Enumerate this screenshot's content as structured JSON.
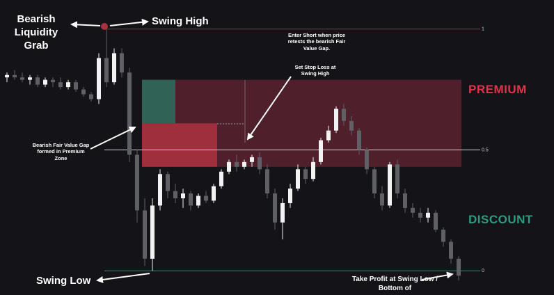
{
  "chart_data": {
    "type": "candlestick",
    "ylim": [
      -0.1,
      1.12
    ],
    "yticks": [
      0,
      0.5,
      1
    ],
    "up_color": "#f2f2f2",
    "down_color": "#5f6066",
    "candles": [
      [
        0.8,
        0.82,
        0.78,
        0.81
      ],
      [
        0.81,
        0.83,
        0.79,
        0.8
      ],
      [
        0.8,
        0.82,
        0.78,
        0.79
      ],
      [
        0.79,
        0.81,
        0.77,
        0.8
      ],
      [
        0.8,
        0.81,
        0.76,
        0.77
      ],
      [
        0.77,
        0.8,
        0.76,
        0.79
      ],
      [
        0.79,
        0.8,
        0.76,
        0.78
      ],
      [
        0.78,
        0.8,
        0.75,
        0.76
      ],
      [
        0.76,
        0.79,
        0.75,
        0.78
      ],
      [
        0.78,
        0.79,
        0.74,
        0.75
      ],
      [
        0.75,
        0.76,
        0.72,
        0.73
      ],
      [
        0.73,
        0.74,
        0.7,
        0.71
      ],
      [
        0.71,
        0.9,
        0.69,
        0.88
      ],
      [
        0.88,
        1.0,
        0.76,
        0.78
      ],
      [
        0.78,
        0.92,
        0.77,
        0.9
      ],
      [
        0.9,
        0.92,
        0.8,
        0.82
      ],
      [
        0.82,
        0.84,
        0.45,
        0.48
      ],
      [
        0.48,
        0.5,
        0.2,
        0.25
      ],
      [
        0.25,
        0.3,
        0.02,
        0.05
      ],
      [
        0.05,
        0.3,
        0.0,
        0.27
      ],
      [
        0.27,
        0.42,
        0.25,
        0.4
      ],
      [
        0.4,
        0.41,
        0.3,
        0.33
      ],
      [
        0.33,
        0.36,
        0.28,
        0.3
      ],
      [
        0.3,
        0.34,
        0.26,
        0.32
      ],
      [
        0.32,
        0.33,
        0.25,
        0.27
      ],
      [
        0.27,
        0.32,
        0.26,
        0.31
      ],
      [
        0.31,
        0.33,
        0.28,
        0.29
      ],
      [
        0.29,
        0.36,
        0.28,
        0.35
      ],
      [
        0.35,
        0.42,
        0.34,
        0.41
      ],
      [
        0.41,
        0.46,
        0.4,
        0.45
      ],
      [
        0.45,
        0.48,
        0.41,
        0.43
      ],
      [
        0.43,
        0.46,
        0.42,
        0.45
      ],
      [
        0.45,
        0.48,
        0.43,
        0.47
      ],
      [
        0.47,
        0.49,
        0.4,
        0.42
      ],
      [
        0.42,
        0.44,
        0.3,
        0.32
      ],
      [
        0.32,
        0.34,
        0.17,
        0.2
      ],
      [
        0.2,
        0.3,
        0.13,
        0.28
      ],
      [
        0.28,
        0.36,
        0.26,
        0.34
      ],
      [
        0.34,
        0.44,
        0.33,
        0.42
      ],
      [
        0.42,
        0.43,
        0.36,
        0.38
      ],
      [
        0.38,
        0.47,
        0.37,
        0.45
      ],
      [
        0.45,
        0.55,
        0.44,
        0.54
      ],
      [
        0.54,
        0.6,
        0.53,
        0.58
      ],
      [
        0.58,
        0.68,
        0.57,
        0.67
      ],
      [
        0.67,
        0.69,
        0.6,
        0.62
      ],
      [
        0.62,
        0.64,
        0.56,
        0.58
      ],
      [
        0.58,
        0.59,
        0.48,
        0.5
      ],
      [
        0.5,
        0.51,
        0.4,
        0.42
      ],
      [
        0.42,
        0.43,
        0.3,
        0.32
      ],
      [
        0.32,
        0.35,
        0.25,
        0.27
      ],
      [
        0.27,
        0.45,
        0.26,
        0.44
      ],
      [
        0.44,
        0.46,
        0.3,
        0.32
      ],
      [
        0.32,
        0.34,
        0.24,
        0.26
      ],
      [
        0.26,
        0.28,
        0.22,
        0.24
      ],
      [
        0.24,
        0.26,
        0.2,
        0.22
      ],
      [
        0.22,
        0.26,
        0.2,
        0.24
      ],
      [
        0.24,
        0.25,
        0.16,
        0.17
      ],
      [
        0.17,
        0.18,
        0.1,
        0.12
      ],
      [
        0.12,
        0.13,
        0.03,
        0.05
      ],
      [
        0.05,
        0.06,
        -0.04,
        -0.02
      ]
    ],
    "premium_zone": {
      "label": "PREMIUM",
      "top": 0.79,
      "bottom": 0.43,
      "color": "#5a2330"
    },
    "stop_box": {
      "top": 0.79,
      "bottom": 0.61,
      "color": "#2c6a5b"
    },
    "fvg_box": {
      "top": 0.61,
      "bottom": 0.43,
      "color": "#a8313f"
    },
    "discount_label": "DISCOUNT",
    "annotations": {
      "liquidity_grab": "Bearish Liquidity Grab",
      "swing_high": "Swing High",
      "enter_short": "Enter Short when price retests the bearish Fair Value Gap.",
      "stop_loss": "Set Stop Loss at Swing High",
      "fvg_formed": "Bearish Fair Value Gap formed in Premium Zone",
      "swing_low": "Swing Low",
      "take_profit": "Take Profit at Swing Low / Bottom of"
    }
  }
}
